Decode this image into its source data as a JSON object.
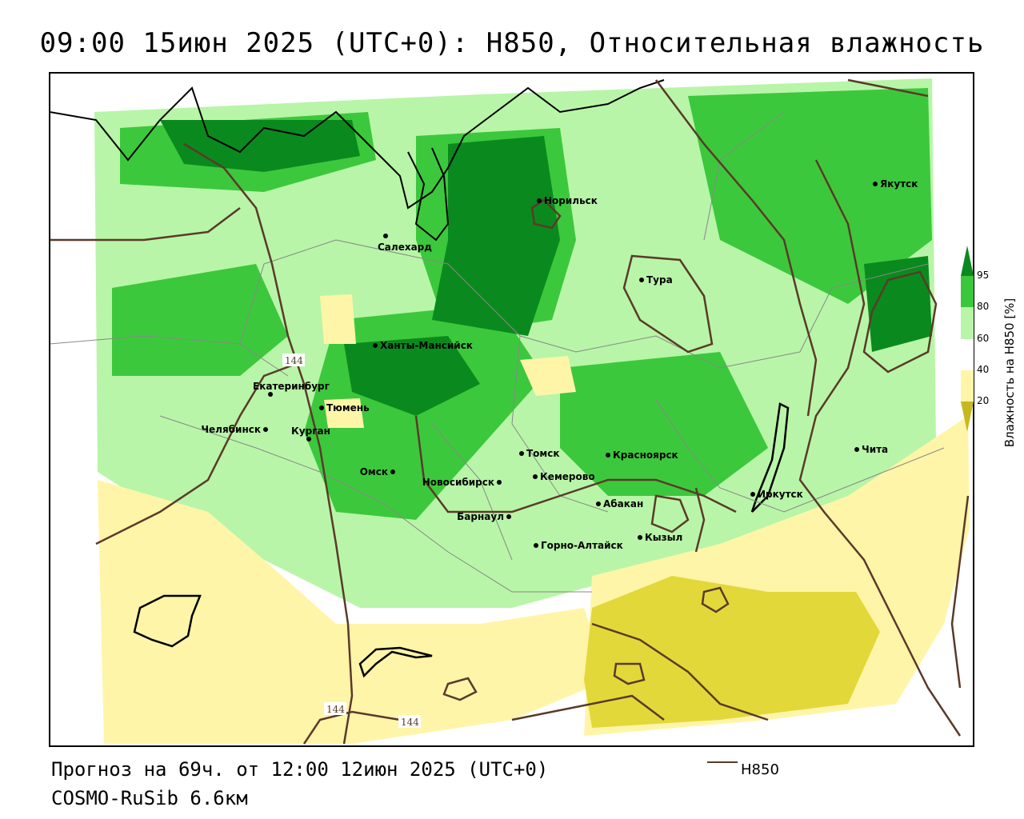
{
  "title": "09:00 15июн 2025 (UTC+0): H850, Относительная влажность",
  "footer": {
    "forecast": "Прогноз на 69ч. от 12:00 12июн 2025 (UTC+0)",
    "model": "COSMO-RuSib 6.6км"
  },
  "legend": {
    "line_label": "H850",
    "line_color": "#5a3a2a"
  },
  "colorbar": {
    "title": "Влажность на H850 [%]",
    "ticks": [
      "95",
      "80",
      "60",
      "40",
      "20"
    ],
    "colors": {
      "below_20": "#c8b820",
      "20_40": "#fff5a8",
      "40_60": "#ffffff",
      "60_80": "#b8f5a8",
      "80_95": "#3cc83c",
      "above_95": "#0a8a1e"
    }
  },
  "contour_labels": [
    "144",
    "144",
    "144"
  ],
  "cities": [
    {
      "name": "Якутск"
    },
    {
      "name": "Норильск"
    },
    {
      "name": "Салехард"
    },
    {
      "name": "Тура"
    },
    {
      "name": "Ханты-Мансийск"
    },
    {
      "name": "Екатеринбург"
    },
    {
      "name": "Тюмень"
    },
    {
      "name": "Челябинск"
    },
    {
      "name": "Курган"
    },
    {
      "name": "Омск"
    },
    {
      "name": "Новосибирск"
    },
    {
      "name": "Томск"
    },
    {
      "name": "Кемерово"
    },
    {
      "name": "Красноярск"
    },
    {
      "name": "Абакан"
    },
    {
      "name": "Барнаул"
    },
    {
      "name": "Горно-Алтайск"
    },
    {
      "name": "Кызыл"
    },
    {
      "name": "Иркутск"
    },
    {
      "name": "Чита"
    }
  ]
}
